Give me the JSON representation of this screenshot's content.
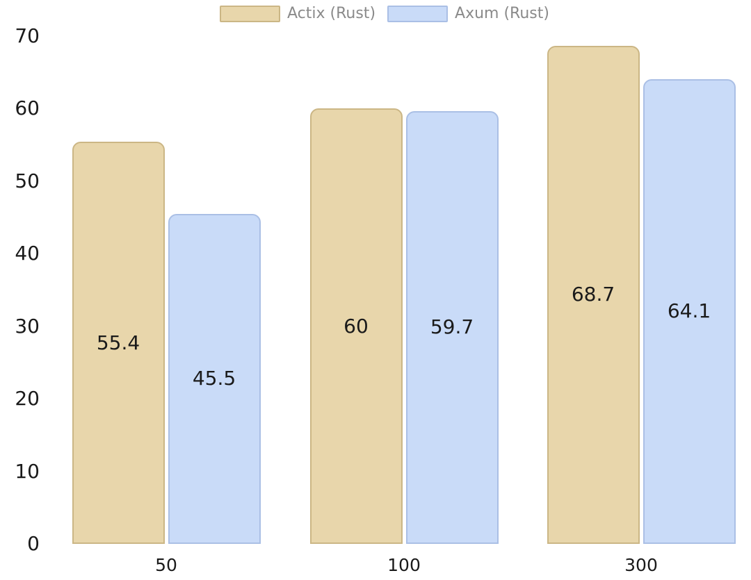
{
  "chart_data": {
    "type": "bar",
    "categories": [
      "50",
      "100",
      "300"
    ],
    "series": [
      {
        "name": "Actix (Rust)",
        "values": [
          55.4,
          60,
          68.7
        ],
        "fill_color": "#e8d6ab",
        "border_color": "#cbb685"
      },
      {
        "name": "Axum (Rust)",
        "values": [
          45.5,
          59.7,
          64.1
        ],
        "fill_color": "#c9dbf8",
        "border_color": "#aabfe5"
      }
    ],
    "ylim": [
      0,
      70
    ],
    "yticks": [
      0,
      10,
      20,
      30,
      40,
      50,
      60,
      70
    ],
    "grid": "off",
    "legend_position": "top-center",
    "value_labels": "inside-center",
    "axis_text_color": "#1a1a1a",
    "value_text_color": "#1a1a1a",
    "legend_text_color": "#8a8a8a",
    "background_color": "#ffffff"
  }
}
